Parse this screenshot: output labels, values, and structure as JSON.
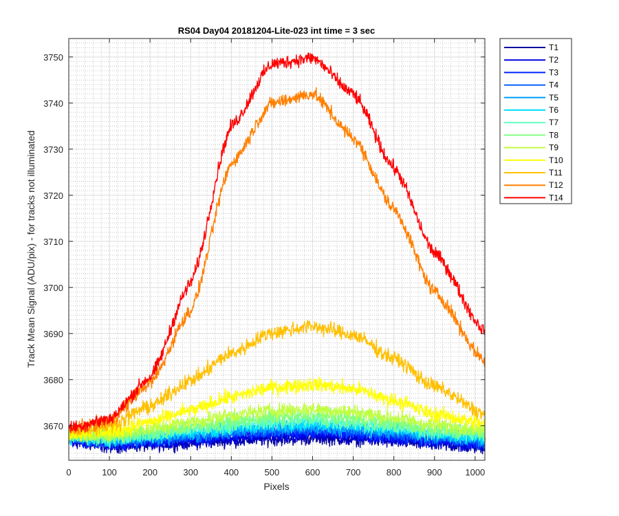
{
  "chart_data": {
    "type": "line",
    "title": "RS04 Day04 20181204-Lite-023 int time = 3 sec",
    "xlabel": "Pixels",
    "ylabel": "Track Mean Signal (ADU/pix) - for tracks not illuminated",
    "xlim": [
      0,
      1024
    ],
    "ylim": [
      3662.5,
      3754
    ],
    "xticks": [
      0,
      100,
      200,
      300,
      400,
      500,
      600,
      700,
      800,
      900,
      1000
    ],
    "yticks": [
      3670,
      3680,
      3690,
      3700,
      3710,
      3720,
      3730,
      3740,
      3750
    ],
    "grid": "major solid, minor dotted",
    "legend_position": "outside-right",
    "series": [
      {
        "name": "T1",
        "color": "#00009f",
        "profile": {
          "x": [
            0,
            100,
            200,
            300,
            400,
            500,
            600,
            700,
            800,
            900,
            1024
          ],
          "y": [
            3666.5,
            3665.6,
            3665.8,
            3666.3,
            3666.8,
            3667.1,
            3667.3,
            3667.1,
            3666.6,
            3665.9,
            3665.3
          ]
        },
        "noise": 1.1
      },
      {
        "name": "T2",
        "color": "#0000df",
        "profile": {
          "x": [
            0,
            100,
            200,
            300,
            400,
            500,
            600,
            700,
            800,
            900,
            1024
          ],
          "y": [
            3666.8,
            3665.9,
            3666.2,
            3666.8,
            3667.4,
            3667.8,
            3668.0,
            3667.7,
            3667.1,
            3666.4,
            3665.8
          ]
        },
        "noise": 1.1
      },
      {
        "name": "T3",
        "color": "#0020ff",
        "profile": {
          "x": [
            0,
            100,
            200,
            300,
            400,
            500,
            600,
            700,
            800,
            900,
            1024
          ],
          "y": [
            3667.0,
            3666.2,
            3666.6,
            3667.2,
            3667.9,
            3668.4,
            3668.6,
            3668.3,
            3667.6,
            3666.8,
            3666.2
          ]
        },
        "noise": 1.1
      },
      {
        "name": "T4",
        "color": "#0060ff",
        "profile": {
          "x": [
            0,
            100,
            200,
            300,
            400,
            500,
            600,
            700,
            800,
            900,
            1024
          ],
          "y": [
            3667.2,
            3666.5,
            3667.0,
            3667.7,
            3668.4,
            3669.0,
            3669.2,
            3668.9,
            3668.1,
            3667.2,
            3666.6
          ]
        },
        "noise": 1.1
      },
      {
        "name": "T5",
        "color": "#00a0ff",
        "profile": {
          "x": [
            0,
            100,
            200,
            300,
            400,
            500,
            600,
            700,
            800,
            900,
            1024
          ],
          "y": [
            3667.4,
            3666.7,
            3667.3,
            3668.1,
            3668.9,
            3669.5,
            3669.8,
            3669.4,
            3668.6,
            3667.7,
            3667.0
          ]
        },
        "noise": 1.1
      },
      {
        "name": "T6",
        "color": "#00e0ff",
        "profile": {
          "x": [
            0,
            100,
            200,
            300,
            400,
            500,
            600,
            700,
            800,
            900,
            1024
          ],
          "y": [
            3667.6,
            3667.0,
            3667.7,
            3668.6,
            3669.5,
            3670.1,
            3670.4,
            3670.0,
            3669.1,
            3668.1,
            3667.4
          ]
        },
        "noise": 1.1
      },
      {
        "name": "T7",
        "color": "#60ffc0",
        "profile": {
          "x": [
            0,
            100,
            200,
            300,
            400,
            500,
            600,
            700,
            800,
            900,
            1024
          ],
          "y": [
            3667.8,
            3667.3,
            3668.1,
            3669.1,
            3670.1,
            3670.8,
            3671.1,
            3670.6,
            3669.7,
            3668.6,
            3667.9
          ]
        },
        "noise": 1.2
      },
      {
        "name": "T8",
        "color": "#80ff80",
        "profile": {
          "x": [
            0,
            100,
            200,
            300,
            400,
            500,
            600,
            700,
            800,
            900,
            1024
          ],
          "y": [
            3668.0,
            3667.6,
            3668.6,
            3669.8,
            3671.0,
            3671.8,
            3672.1,
            3671.6,
            3670.5,
            3669.3,
            3668.5
          ]
        },
        "noise": 1.2
      },
      {
        "name": "T9",
        "color": "#c0ff40",
        "profile": {
          "x": [
            0,
            100,
            200,
            300,
            400,
            500,
            600,
            700,
            800,
            900,
            1024
          ],
          "y": [
            3668.2,
            3668.0,
            3669.3,
            3670.8,
            3672.3,
            3673.3,
            3673.6,
            3673.0,
            3671.7,
            3670.2,
            3669.2
          ]
        },
        "noise": 1.2
      },
      {
        "name": "T10",
        "color": "#ffff00",
        "profile": {
          "x": [
            0,
            100,
            200,
            300,
            400,
            500,
            600,
            700,
            800,
            900,
            1024
          ],
          "y": [
            3668.4,
            3668.6,
            3670.8,
            3673.3,
            3676.2,
            3678.3,
            3679.0,
            3678.0,
            3675.5,
            3672.5,
            3670.5
          ]
        },
        "noise": 1.2
      },
      {
        "name": "T11",
        "color": "#ffc000",
        "profile": {
          "x": [
            0,
            100,
            200,
            300,
            400,
            500,
            600,
            700,
            800,
            900,
            1024
          ],
          "y": [
            3668.8,
            3670.0,
            3674.2,
            3679.8,
            3685.7,
            3690.2,
            3691.6,
            3689.7,
            3684.6,
            3678.5,
            3672.5
          ]
        },
        "noise": 1.2
      },
      {
        "name": "T12",
        "color": "#ff8000",
        "profile": {
          "x": [
            0,
            100,
            200,
            300,
            400,
            500,
            600,
            700,
            800,
            900,
            1024
          ],
          "y": [
            3669.2,
            3671.0,
            3679.2,
            3695.0,
            3727.0,
            3740.0,
            3742.0,
            3732.5,
            3717.0,
            3699.0,
            3684.0
          ]
        },
        "noise": 1.1
      },
      {
        "name": "T14",
        "color": "#ff0000",
        "profile": {
          "x": [
            0,
            100,
            200,
            300,
            400,
            500,
            600,
            700,
            800,
            900,
            1024
          ],
          "y": [
            3669.5,
            3671.5,
            3680.5,
            3701.0,
            3735.0,
            3748.5,
            3749.8,
            3742.0,
            3726.0,
            3707.5,
            3690.5
          ]
        },
        "noise": 1.1
      }
    ]
  }
}
